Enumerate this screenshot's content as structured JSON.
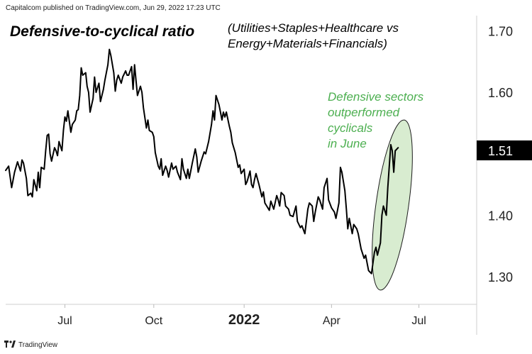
{
  "attribution": "Capitalcom published on TradingView.com, Jun 29, 2022 17:23 UTC",
  "brand": "TradingView",
  "brand_icon": "tradingview-logo-icon",
  "chart_data": {
    "type": "line",
    "title": "Defensive-to-cyclical ratio",
    "subtitle_line1": "(Utilities+Staples+Healthcare vs",
    "subtitle_line2": "Energy+Materials+Financials)",
    "annotation": [
      "Defensive sectors",
      "outperformed",
      "cyclicals",
      "in June"
    ],
    "annotation_color": "#4caf50",
    "highlight_fill": "#d8ecd0",
    "line_color": "#000000",
    "last_value_label": "1.51",
    "ylim": [
      1.255,
      1.725
    ],
    "yticks": [
      {
        "value": 1.7,
        "label": "1.70"
      },
      {
        "value": 1.6,
        "label": "1.60"
      },
      {
        "value": 1.4,
        "label": "1.40"
      },
      {
        "value": 1.3,
        "label": "1.30"
      }
    ],
    "xticks": [
      {
        "x": 0.6,
        "label": "Jul",
        "bold": false
      },
      {
        "x": 3.6,
        "label": "Oct",
        "bold": false
      },
      {
        "x": 6.65,
        "label": "2022",
        "bold": true
      },
      {
        "x": 9.6,
        "label": "Apr",
        "bold": false
      },
      {
        "x": 12.55,
        "label": "Jul",
        "bold": false
      }
    ],
    "xlim": [
      -1.4,
      14.5
    ],
    "series": [
      {
        "values": [
          [
            -1.4,
            1.473
          ],
          [
            -1.3,
            1.48
          ],
          [
            -1.2,
            1.445
          ],
          [
            -1.1,
            1.47
          ],
          [
            -1.0,
            1.487
          ],
          [
            -0.9,
            1.472
          ],
          [
            -0.85,
            1.49
          ],
          [
            -0.8,
            1.485
          ],
          [
            -0.7,
            1.46
          ],
          [
            -0.65,
            1.432
          ],
          [
            -0.55,
            1.436
          ],
          [
            -0.5,
            1.43
          ],
          [
            -0.45,
            1.458
          ],
          [
            -0.35,
            1.44
          ],
          [
            -0.3,
            1.47
          ],
          [
            -0.25,
            1.445
          ],
          [
            -0.2,
            1.478
          ],
          [
            -0.1,
            1.475
          ],
          [
            -0.05,
            1.505
          ],
          [
            0.0,
            1.53
          ],
          [
            0.05,
            1.532
          ],
          [
            0.1,
            1.5
          ],
          [
            0.15,
            1.488
          ],
          [
            0.25,
            1.51
          ],
          [
            0.3,
            1.505
          ],
          [
            0.35,
            1.497
          ],
          [
            0.4,
            1.52
          ],
          [
            0.5,
            1.505
          ],
          [
            0.55,
            1.538
          ],
          [
            0.6,
            1.56
          ],
          [
            0.65,
            1.553
          ],
          [
            0.7,
            1.57
          ],
          [
            0.8,
            1.535
          ],
          [
            0.85,
            1.548
          ],
          [
            0.95,
            1.555
          ],
          [
            1.0,
            1.57
          ],
          [
            1.05,
            1.572
          ],
          [
            1.1,
            1.595
          ],
          [
            1.15,
            1.64
          ],
          [
            1.2,
            1.628
          ],
          [
            1.3,
            1.632
          ],
          [
            1.35,
            1.61
          ],
          [
            1.4,
            1.6
          ],
          [
            1.45,
            1.568
          ],
          [
            1.55,
            1.59
          ],
          [
            1.6,
            1.625
          ],
          [
            1.65,
            1.6
          ],
          [
            1.75,
            1.615
          ],
          [
            1.8,
            1.585
          ],
          [
            1.9,
            1.605
          ],
          [
            1.95,
            1.62
          ],
          [
            2.05,
            1.645
          ],
          [
            2.1,
            1.67
          ],
          [
            2.15,
            1.66
          ],
          [
            2.25,
            1.632
          ],
          [
            2.3,
            1.602
          ],
          [
            2.35,
            1.62
          ],
          [
            2.4,
            1.628
          ],
          [
            2.5,
            1.615
          ],
          [
            2.55,
            1.625
          ],
          [
            2.65,
            1.635
          ],
          [
            2.7,
            1.628
          ],
          [
            2.75,
            1.628
          ],
          [
            2.85,
            1.642
          ],
          [
            2.9,
            1.605
          ],
          [
            2.95,
            1.645
          ],
          [
            3.0,
            1.62
          ],
          [
            3.05,
            1.595
          ],
          [
            3.15,
            1.61
          ],
          [
            3.2,
            1.6
          ],
          [
            3.25,
            1.575
          ],
          [
            3.35,
            1.542
          ],
          [
            3.4,
            1.555
          ],
          [
            3.45,
            1.538
          ],
          [
            3.55,
            1.535
          ],
          [
            3.6,
            1.528
          ],
          [
            3.65,
            1.502
          ],
          [
            3.75,
            1.48
          ],
          [
            3.8,
            1.475
          ],
          [
            3.85,
            1.492
          ],
          [
            3.9,
            1.465
          ],
          [
            4.0,
            1.48
          ],
          [
            4.05,
            1.473
          ],
          [
            4.1,
            1.462
          ],
          [
            4.2,
            1.485
          ],
          [
            4.25,
            1.475
          ],
          [
            4.35,
            1.48
          ],
          [
            4.4,
            1.47
          ],
          [
            4.5,
            1.458
          ],
          [
            4.55,
            1.492
          ],
          [
            4.6,
            1.475
          ],
          [
            4.7,
            1.46
          ],
          [
            4.75,
            1.475
          ],
          [
            4.8,
            1.46
          ],
          [
            4.9,
            1.485
          ],
          [
            5.0,
            1.508
          ],
          [
            5.05,
            1.495
          ],
          [
            5.1,
            1.47
          ],
          [
            5.2,
            1.488
          ],
          [
            5.3,
            1.503
          ],
          [
            5.35,
            1.5
          ],
          [
            5.45,
            1.52
          ],
          [
            5.55,
            1.548
          ],
          [
            5.6,
            1.57
          ],
          [
            5.65,
            1.555
          ],
          [
            5.7,
            1.595
          ],
          [
            5.8,
            1.58
          ],
          [
            5.85,
            1.568
          ],
          [
            5.9,
            1.555
          ],
          [
            5.95,
            1.568
          ],
          [
            6.0,
            1.56
          ],
          [
            6.05,
            1.568
          ],
          [
            6.15,
            1.545
          ],
          [
            6.2,
            1.535
          ],
          [
            6.25,
            1.518
          ],
          [
            6.35,
            1.502
          ],
          [
            6.45,
            1.478
          ],
          [
            6.5,
            1.482
          ],
          [
            6.55,
            1.468
          ],
          [
            6.65,
            1.475
          ],
          [
            6.7,
            1.45
          ],
          [
            6.75,
            1.455
          ],
          [
            6.85,
            1.472
          ],
          [
            6.9,
            1.45
          ],
          [
            6.95,
            1.445
          ],
          [
            7.0,
            1.458
          ],
          [
            7.05,
            1.468
          ],
          [
            7.15,
            1.45
          ],
          [
            7.25,
            1.43
          ],
          [
            7.3,
            1.438
          ],
          [
            7.35,
            1.42
          ],
          [
            7.45,
            1.412
          ],
          [
            7.5,
            1.408
          ],
          [
            7.55,
            1.423
          ],
          [
            7.65,
            1.41
          ],
          [
            7.75,
            1.432
          ],
          [
            7.8,
            1.425
          ],
          [
            7.85,
            1.415
          ],
          [
            7.9,
            1.437
          ],
          [
            8.0,
            1.432
          ],
          [
            8.05,
            1.415
          ],
          [
            8.15,
            1.41
          ],
          [
            8.2,
            1.4
          ],
          [
            8.3,
            1.398
          ],
          [
            8.4,
            1.415
          ],
          [
            8.45,
            1.39
          ],
          [
            8.55,
            1.38
          ],
          [
            8.6,
            1.383
          ],
          [
            8.7,
            1.37
          ],
          [
            8.8,
            1.41
          ],
          [
            8.85,
            1.42
          ],
          [
            8.95,
            1.415
          ],
          [
            9.0,
            1.39
          ],
          [
            9.05,
            1.405
          ],
          [
            9.15,
            1.43
          ],
          [
            9.2,
            1.425
          ],
          [
            9.3,
            1.41
          ],
          [
            9.35,
            1.445
          ],
          [
            9.45,
            1.46
          ],
          [
            9.5,
            1.425
          ],
          [
            9.6,
            1.412
          ],
          [
            9.7,
            1.405
          ],
          [
            9.75,
            1.395
          ],
          [
            9.85,
            1.42
          ],
          [
            9.9,
            1.478
          ],
          [
            9.95,
            1.47
          ],
          [
            10.05,
            1.44
          ],
          [
            10.1,
            1.41
          ],
          [
            10.15,
            1.378
          ],
          [
            10.2,
            1.395
          ],
          [
            10.3,
            1.37
          ],
          [
            10.35,
            1.385
          ],
          [
            10.45,
            1.378
          ],
          [
            10.5,
            1.37
          ],
          [
            10.6,
            1.345
          ],
          [
            10.7,
            1.33
          ],
          [
            10.75,
            1.335
          ],
          [
            10.85,
            1.31
          ],
          [
            10.95,
            1.305
          ],
          [
            11.05,
            1.34
          ],
          [
            11.1,
            1.348
          ],
          [
            11.15,
            1.335
          ],
          [
            11.25,
            1.355
          ],
          [
            11.3,
            1.4
          ],
          [
            11.35,
            1.415
          ],
          [
            11.45,
            1.4
          ],
          [
            11.5,
            1.445
          ],
          [
            11.6,
            1.515
          ],
          [
            11.65,
            1.505
          ],
          [
            11.7,
            1.47
          ],
          [
            11.75,
            1.505
          ],
          [
            11.85,
            1.51
          ]
        ]
      }
    ]
  }
}
